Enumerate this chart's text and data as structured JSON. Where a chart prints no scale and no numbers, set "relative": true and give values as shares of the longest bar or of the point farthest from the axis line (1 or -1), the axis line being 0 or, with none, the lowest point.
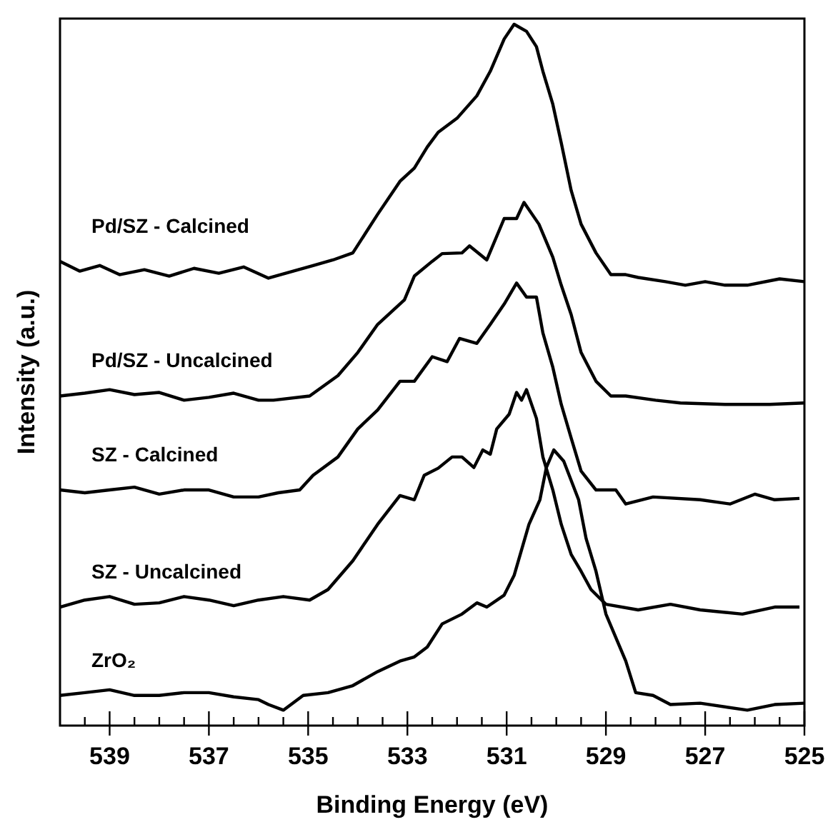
{
  "chart_data": {
    "type": "line",
    "relative": true,
    "xlabel": "Binding Energy (eV)",
    "ylabel": "Intensity (a.u.)",
    "xlim": [
      540,
      525
    ],
    "xticks": [
      {
        "value": 539.5,
        "label": null
      },
      539,
      {
        "value": 538.5,
        "label": null
      },
      {
        "value": 538,
        "label": null
      },
      {
        "value": 537.5,
        "label": null
      },
      537,
      {
        "value": 536.5,
        "label": null
      },
      {
        "value": 536,
        "label": null
      },
      {
        "value": 535.5,
        "label": null
      },
      535,
      {
        "value": 534.5,
        "label": null
      },
      {
        "value": 534,
        "label": null
      },
      {
        "value": 533.5,
        "label": null
      },
      533,
      {
        "value": 532.5,
        "label": null
      },
      {
        "value": 532,
        "label": null
      },
      {
        "value": 531.5,
        "label": null
      },
      531,
      {
        "value": 530.5,
        "label": null
      },
      {
        "value": 530,
        "label": null
      },
      {
        "value": 529.5,
        "label": null
      },
      529,
      {
        "value": 528.5,
        "label": null
      },
      {
        "value": 528,
        "label": null
      },
      {
        "value": 527.5,
        "label": null
      },
      527,
      {
        "value": 526.5,
        "label": null
      },
      {
        "value": 526,
        "label": null
      },
      {
        "value": 525.5,
        "label": null
      },
      525
    ],
    "grid": false,
    "marker": "none",
    "line_style": "solid",
    "series": [
      {
        "name": "Pd/SZ - Calcined",
        "color": "#000000",
        "x": [
          540,
          539.6,
          539.2,
          538.8,
          538.3,
          537.8,
          537.3,
          536.8,
          536.3,
          535.8,
          535.3,
          534.9,
          534.5,
          534.1,
          533.6,
          533.15,
          532.86,
          532.6,
          532.38,
          532.0,
          531.6,
          531.33,
          531.05,
          530.85,
          530.6,
          530.4,
          530.27,
          530.07,
          529.9,
          529.7,
          529.5,
          529.2,
          528.9,
          528.6,
          528.35,
          527.8,
          527.4,
          527.0,
          526.6,
          526.15,
          525.5,
          525.0
        ],
        "values": [
          0.662,
          0.648,
          0.656,
          0.643,
          0.65,
          0.641,
          0.652,
          0.645,
          0.654,
          0.638,
          0.648,
          0.656,
          0.664,
          0.674,
          0.729,
          0.776,
          0.795,
          0.825,
          0.846,
          0.866,
          0.898,
          0.933,
          0.979,
          1.0,
          0.99,
          0.968,
          0.933,
          0.886,
          0.831,
          0.763,
          0.715,
          0.674,
          0.643,
          0.643,
          0.639,
          0.633,
          0.628,
          0.633,
          0.628,
          0.628,
          0.637,
          0.633
        ]
      },
      {
        "name": "Pd/SZ - Uncalcined",
        "color": "#000000",
        "x": [
          540,
          539.5,
          539,
          538.5,
          538,
          537.5,
          537,
          536.5,
          536,
          535.7,
          534.97,
          534.4,
          534.0,
          533.6,
          533.06,
          532.86,
          532.5,
          532.3,
          531.9,
          531.75,
          531.4,
          531.05,
          530.8,
          530.65,
          530.35,
          530.07,
          529.9,
          529.7,
          529.5,
          529.2,
          528.9,
          528.6,
          528.0,
          527.5,
          526.6,
          525.7,
          525.0
        ],
        "values": [
          0.47,
          0.474,
          0.479,
          0.472,
          0.475,
          0.464,
          0.468,
          0.474,
          0.464,
          0.464,
          0.47,
          0.499,
          0.532,
          0.572,
          0.607,
          0.641,
          0.662,
          0.673,
          0.674,
          0.684,
          0.664,
          0.723,
          0.723,
          0.746,
          0.715,
          0.668,
          0.628,
          0.586,
          0.532,
          0.491,
          0.47,
          0.47,
          0.464,
          0.46,
          0.458,
          0.458,
          0.46
        ]
      },
      {
        "name": "SZ - Calcined",
        "color": "#000000",
        "x": [
          540,
          539.5,
          539,
          538.5,
          538,
          537.5,
          537,
          536.5,
          536,
          535.6,
          535.17,
          534.9,
          534.4,
          534.0,
          533.6,
          533.15,
          532.86,
          532.5,
          532.2,
          531.95,
          531.6,
          531.33,
          531.05,
          530.8,
          530.6,
          530.4,
          530.27,
          530.07,
          529.9,
          529.7,
          529.5,
          529.2,
          528.8,
          528.6,
          528.05,
          527.1,
          526.5,
          526.0,
          525.6,
          525.1
        ],
        "values": [
          0.336,
          0.332,
          0.336,
          0.34,
          0.33,
          0.336,
          0.336,
          0.326,
          0.326,
          0.332,
          0.336,
          0.357,
          0.383,
          0.423,
          0.45,
          0.491,
          0.491,
          0.526,
          0.519,
          0.552,
          0.545,
          0.572,
          0.601,
          0.631,
          0.611,
          0.611,
          0.56,
          0.511,
          0.458,
          0.41,
          0.363,
          0.336,
          0.336,
          0.316,
          0.326,
          0.322,
          0.316,
          0.33,
          0.322,
          0.324
        ]
      },
      {
        "name": "SZ - Uncalcined",
        "color": "#000000",
        "x": [
          540,
          539.5,
          539,
          538.5,
          538,
          537.5,
          537,
          536.5,
          536,
          535.5,
          534.97,
          534.6,
          534.1,
          533.6,
          533.15,
          532.86,
          532.66,
          532.38,
          532.1,
          531.9,
          531.66,
          531.48,
          531.33,
          531.2,
          530.95,
          530.8,
          530.7,
          530.6,
          530.4,
          530.27,
          530.07,
          529.9,
          529.7,
          529.5,
          529.3,
          529.0,
          528.35,
          527.7,
          527.1,
          526.25,
          525.6,
          525.1
        ],
        "values": [
          0.169,
          0.179,
          0.184,
          0.173,
          0.175,
          0.184,
          0.179,
          0.171,
          0.179,
          0.184,
          0.179,
          0.194,
          0.235,
          0.287,
          0.328,
          0.322,
          0.357,
          0.367,
          0.383,
          0.383,
          0.368,
          0.393,
          0.387,
          0.423,
          0.444,
          0.475,
          0.464,
          0.479,
          0.438,
          0.383,
          0.336,
          0.287,
          0.244,
          0.22,
          0.194,
          0.173,
          0.165,
          0.173,
          0.165,
          0.159,
          0.169,
          0.169
        ]
      },
      {
        "name": "ZrO₂",
        "color": "#000000",
        "x": [
          540,
          539.5,
          539,
          538.5,
          538,
          537.5,
          537,
          536.5,
          536,
          535.8,
          535.5,
          535.1,
          534.6,
          534.1,
          533.6,
          533.15,
          532.86,
          532.6,
          532.3,
          531.9,
          531.6,
          531.4,
          531.05,
          530.85,
          530.55,
          530.33,
          530.2,
          530.05,
          529.85,
          529.55,
          529.4,
          529.2,
          529.0,
          528.6,
          528.4,
          528.05,
          527.7,
          527.1,
          526.15,
          525.6,
          525.0
        ],
        "values": [
          0.043,
          0.047,
          0.051,
          0.043,
          0.043,
          0.047,
          0.047,
          0.041,
          0.037,
          0.03,
          0.022,
          0.043,
          0.047,
          0.057,
          0.077,
          0.092,
          0.098,
          0.112,
          0.145,
          0.159,
          0.175,
          0.169,
          0.186,
          0.214,
          0.287,
          0.322,
          0.368,
          0.393,
          0.377,
          0.322,
          0.267,
          0.22,
          0.159,
          0.092,
          0.047,
          0.043,
          0.03,
          0.032,
          0.022,
          0.03,
          0.032
        ]
      }
    ]
  }
}
